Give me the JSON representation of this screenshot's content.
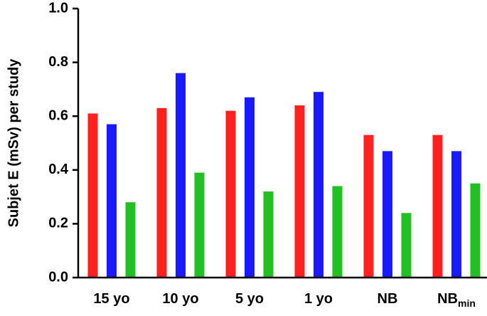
{
  "chart_data": {
    "type": "bar",
    "y_label": "Subjet E (mSv) per study",
    "categories": [
      "15 yo",
      "10 yo",
      "5 yo",
      "1 yo",
      "NB",
      "NB"
    ],
    "category_subscripts": [
      null,
      null,
      null,
      null,
      null,
      "min"
    ],
    "series": [
      {
        "color": "#ff2020",
        "values": [
          0.61,
          0.63,
          0.62,
          0.64,
          0.53,
          0.53
        ]
      },
      {
        "color": "#1a1aff",
        "values": [
          0.57,
          0.76,
          0.67,
          0.69,
          0.47,
          0.47
        ]
      },
      {
        "color": "#22c022",
        "values": [
          0.28,
          0.39,
          0.32,
          0.34,
          0.24,
          0.35
        ]
      }
    ],
    "ylim": [
      0,
      1
    ],
    "yticks": [
      {
        "value": 0,
        "label": "0.0"
      },
      0.2,
      0.4,
      0.6,
      0.8,
      {
        "value": 1,
        "label": "1.0"
      }
    ],
    "grid": false
  }
}
